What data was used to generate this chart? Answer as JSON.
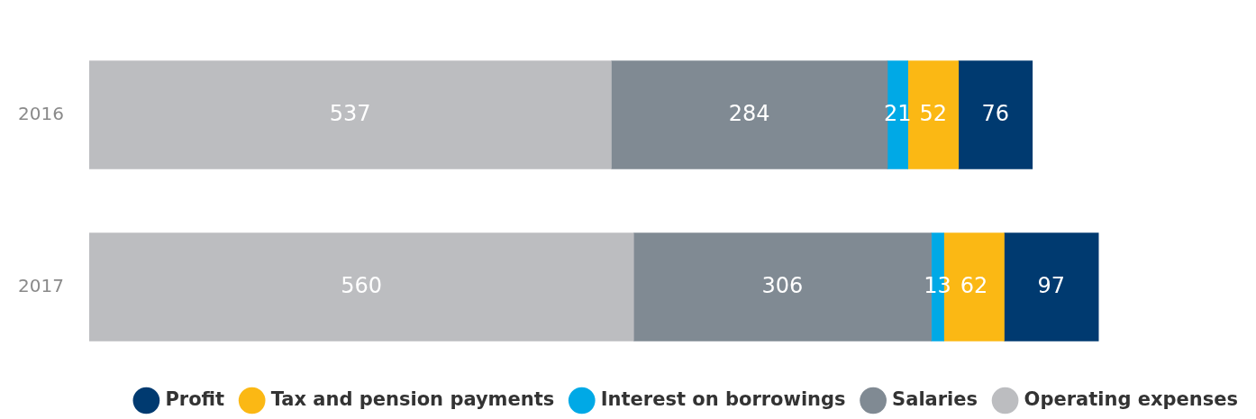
{
  "chart_data": {
    "type": "bar",
    "orientation": "horizontal",
    "stacked": true,
    "categories": [
      "2016",
      "2017"
    ],
    "series": [
      {
        "name": "Operating expenses",
        "color": "#bcbdc0",
        "values": [
          537,
          560
        ]
      },
      {
        "name": "Salaries",
        "color": "#808a93",
        "values": [
          284,
          306
        ]
      },
      {
        "name": "Interest on borrowings",
        "color": "#00a9e6",
        "values": [
          21,
          13
        ]
      },
      {
        "name": "Tax and pension payments",
        "color": "#fbb814",
        "values": [
          52,
          62
        ]
      },
      {
        "name": "Profit",
        "color": "#003a70",
        "values": [
          76,
          97
        ]
      }
    ],
    "data_labels": true,
    "legend": "bottom"
  }
}
